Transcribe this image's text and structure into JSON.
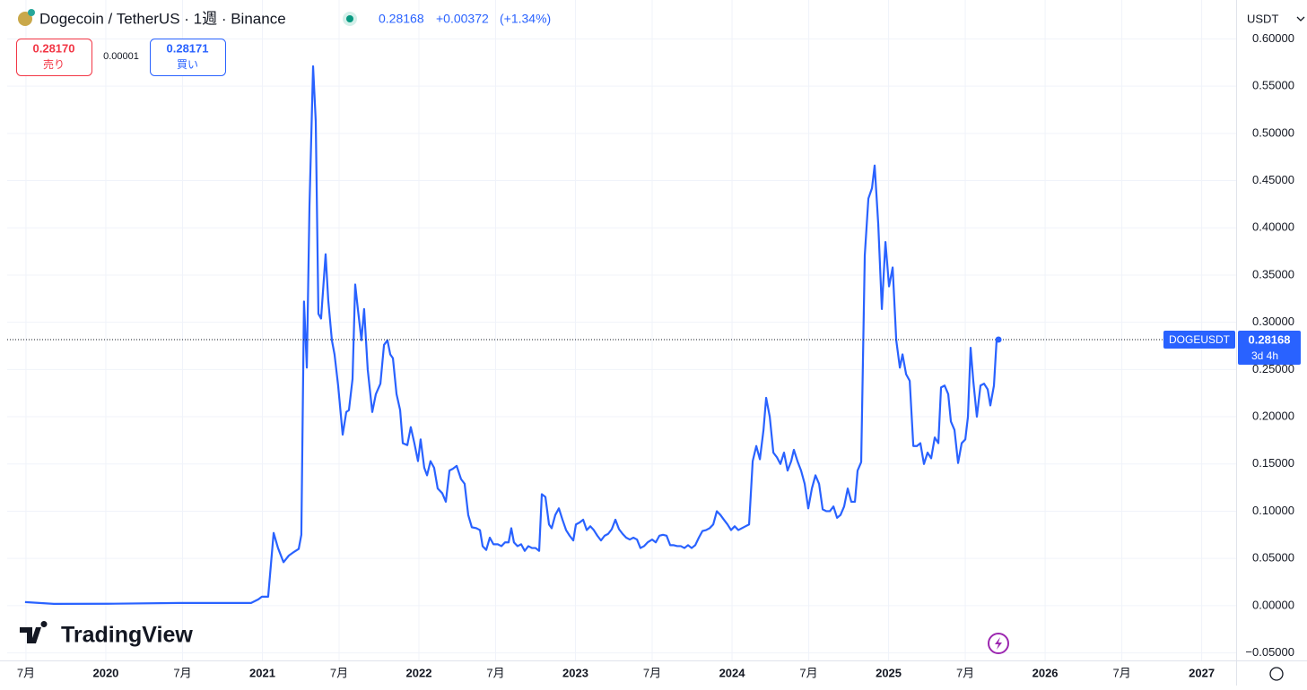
{
  "header": {
    "title": "Dogecoin / TetherUS · 1週 · Binance",
    "change": "+0.00372",
    "change_pct": "(+1.34%)",
    "quote": "USDT",
    "sell": {
      "price": "0.28170",
      "label": "売り"
    },
    "spread": "0.00001",
    "buy": {
      "price": "0.28171",
      "label": "買い"
    },
    "brand": "TradingView"
  },
  "chart_data": {
    "type": "line",
    "grid": true,
    "xlim": [
      2019.37,
      2027.22
    ],
    "ylim": [
      -0.058,
      0.608
    ],
    "xticks": [
      {
        "value": 2019.49,
        "label": "7月"
      },
      2020,
      {
        "value": 2020.49,
        "label": "7月"
      },
      2021,
      {
        "value": 2021.49,
        "label": "7月"
      },
      2022,
      {
        "value": 2022.49,
        "label": "7月"
      },
      2023,
      {
        "value": 2023.49,
        "label": "7月"
      },
      2024,
      {
        "value": 2024.49,
        "label": "7月"
      },
      2025,
      {
        "value": 2025.49,
        "label": "7月"
      },
      2026,
      {
        "value": 2026.49,
        "label": "7月"
      },
      2027
    ],
    "yticks": [
      {
        "value": -0.05,
        "label": "−0.05000"
      },
      {
        "value": 0,
        "label": "0.00000"
      },
      {
        "value": 0.05,
        "label": "0.05000"
      },
      {
        "value": 0.1,
        "label": "0.10000"
      },
      {
        "value": 0.15,
        "label": "0.15000"
      },
      {
        "value": 0.2,
        "label": "0.20000"
      },
      {
        "value": 0.25,
        "label": "0.25000"
      },
      {
        "value": 0.3,
        "label": "0.30000"
      },
      {
        "value": 0.35,
        "label": "0.35000"
      },
      {
        "value": 0.4,
        "label": "0.40000"
      },
      {
        "value": 0.45,
        "label": "0.45000"
      },
      {
        "value": 0.5,
        "label": "0.50000"
      },
      {
        "value": 0.55,
        "label": "0.55000"
      },
      {
        "value": 0.6,
        "label": "0.60000"
      }
    ],
    "countdown": "3d 4h",
    "x": [
      2019.484,
      2019.668,
      2020.011,
      2020.47,
      2020.928,
      2020.974,
      2020.997,
      2021.037,
      2021.072,
      2021.1,
      2021.135,
      2021.169,
      2021.203,
      2021.232,
      2021.249,
      2021.266,
      2021.284,
      2021.301,
      2021.324,
      2021.341,
      2021.358,
      2021.375,
      2021.404,
      2021.421,
      2021.444,
      2021.461,
      2021.484,
      2021.513,
      2021.536,
      2021.553,
      2021.576,
      2021.593,
      2021.61,
      2021.633,
      2021.65,
      2021.673,
      2021.702,
      2021.725,
      2021.754,
      2021.777,
      2021.799,
      2021.817,
      2021.834,
      2021.857,
      2021.88,
      2021.897,
      2021.926,
      2021.948,
      2021.971,
      2021.994,
      2022.011,
      2022.034,
      2022.052,
      2022.074,
      2022.097,
      2022.12,
      2022.149,
      2022.172,
      2022.195,
      2022.218,
      2022.241,
      2022.269,
      2022.292,
      2022.315,
      2022.338,
      2022.367,
      2022.39,
      2022.407,
      2022.43,
      2022.453,
      2022.476,
      2022.504,
      2022.527,
      2022.55,
      2022.573,
      2022.59,
      2022.607,
      2022.63,
      2022.653,
      2022.676,
      2022.699,
      2022.722,
      2022.745,
      2022.768,
      2022.785,
      2022.808,
      2022.831,
      2022.848,
      2022.871,
      2022.894,
      2022.917,
      2022.94,
      2022.963,
      2022.986,
      2023.003,
      2023.026,
      2023.049,
      2023.072,
      2023.095,
      2023.117,
      2023.14,
      2023.163,
      2023.186,
      2023.209,
      2023.232,
      2023.255,
      2023.278,
      2023.301,
      2023.324,
      2023.347,
      2023.37,
      2023.393,
      2023.415,
      2023.438,
      2023.461,
      2023.49,
      2023.513,
      2023.536,
      2023.559,
      2023.582,
      2023.605,
      2023.628,
      2023.65,
      2023.673,
      2023.696,
      2023.719,
      2023.742,
      2023.765,
      2023.788,
      2023.811,
      2023.834,
      2023.857,
      2023.88,
      2023.903,
      2023.926,
      2023.948,
      2023.971,
      2023.994,
      2024.017,
      2024.04,
      2024.063,
      2024.086,
      2024.109,
      2024.132,
      2024.155,
      2024.178,
      2024.201,
      2024.218,
      2024.241,
      2024.264,
      2024.287,
      2024.309,
      2024.332,
      2024.355,
      2024.378,
      2024.395,
      2024.418,
      2024.441,
      2024.464,
      2024.487,
      2024.51,
      2024.533,
      2024.556,
      2024.579,
      2024.602,
      2024.625,
      2024.648,
      2024.671,
      2024.693,
      2024.716,
      2024.739,
      2024.762,
      2024.785,
      2024.802,
      2024.825,
      2024.848,
      2024.871,
      2024.894,
      2024.911,
      2024.934,
      2024.957,
      2024.98,
      2025.003,
      2025.026,
      2025.049,
      2025.072,
      2025.089,
      2025.112,
      2025.135,
      2025.158,
      2025.181,
      2025.203,
      2025.226,
      2025.249,
      2025.272,
      2025.295,
      2025.318,
      2025.335,
      2025.358,
      2025.381,
      2025.398,
      2025.421,
      2025.444,
      2025.467,
      2025.49,
      2025.507,
      2025.524,
      2025.541,
      2025.564,
      2025.587,
      2025.61,
      2025.633,
      2025.65,
      2025.673,
      2025.69,
      2025.702
    ],
    "series": [
      {
        "name": "DOGEUSDT",
        "color": "#2962ff",
        "values": [
          0.0038,
          0.0019,
          0.002,
          0.0028,
          0.0028,
          0.0066,
          0.0095,
          0.0095,
          0.077,
          0.061,
          0.046,
          0.053,
          0.057,
          0.06,
          0.075,
          0.322,
          0.252,
          0.423,
          0.571,
          0.513,
          0.309,
          0.304,
          0.372,
          0.323,
          0.281,
          0.266,
          0.233,
          0.181,
          0.205,
          0.207,
          0.24,
          0.34,
          0.314,
          0.281,
          0.314,
          0.25,
          0.205,
          0.224,
          0.235,
          0.276,
          0.281,
          0.266,
          0.262,
          0.224,
          0.207,
          0.172,
          0.17,
          0.189,
          0.172,
          0.153,
          0.176,
          0.146,
          0.138,
          0.153,
          0.146,
          0.124,
          0.119,
          0.11,
          0.143,
          0.145,
          0.148,
          0.134,
          0.129,
          0.096,
          0.083,
          0.082,
          0.08,
          0.063,
          0.059,
          0.072,
          0.065,
          0.065,
          0.063,
          0.067,
          0.067,
          0.082,
          0.067,
          0.063,
          0.065,
          0.058,
          0.063,
          0.061,
          0.061,
          0.058,
          0.118,
          0.115,
          0.086,
          0.082,
          0.096,
          0.103,
          0.091,
          0.08,
          0.074,
          0.069,
          0.086,
          0.088,
          0.091,
          0.08,
          0.084,
          0.08,
          0.074,
          0.069,
          0.074,
          0.076,
          0.081,
          0.091,
          0.081,
          0.076,
          0.072,
          0.07,
          0.072,
          0.07,
          0.061,
          0.063,
          0.067,
          0.07,
          0.067,
          0.074,
          0.075,
          0.074,
          0.064,
          0.064,
          0.063,
          0.063,
          0.061,
          0.064,
          0.061,
          0.064,
          0.072,
          0.079,
          0.08,
          0.082,
          0.086,
          0.1,
          0.096,
          0.091,
          0.086,
          0.08,
          0.084,
          0.08,
          0.082,
          0.084,
          0.086,
          0.153,
          0.169,
          0.155,
          0.186,
          0.22,
          0.2,
          0.162,
          0.157,
          0.15,
          0.162,
          0.143,
          0.153,
          0.165,
          0.153,
          0.143,
          0.129,
          0.103,
          0.124,
          0.138,
          0.129,
          0.102,
          0.1,
          0.1,
          0.105,
          0.093,
          0.096,
          0.105,
          0.124,
          0.11,
          0.11,
          0.143,
          0.152,
          0.371,
          0.431,
          0.442,
          0.466,
          0.404,
          0.314,
          0.385,
          0.338,
          0.358,
          0.281,
          0.252,
          0.266,
          0.245,
          0.238,
          0.169,
          0.169,
          0.172,
          0.15,
          0.162,
          0.156,
          0.178,
          0.172,
          0.231,
          0.233,
          0.224,
          0.195,
          0.186,
          0.151,
          0.172,
          0.176,
          0.2,
          0.273,
          0.238,
          0.2,
          0.233,
          0.235,
          0.229,
          0.212,
          0.233,
          0.281,
          0.28168
        ]
      }
    ]
  }
}
